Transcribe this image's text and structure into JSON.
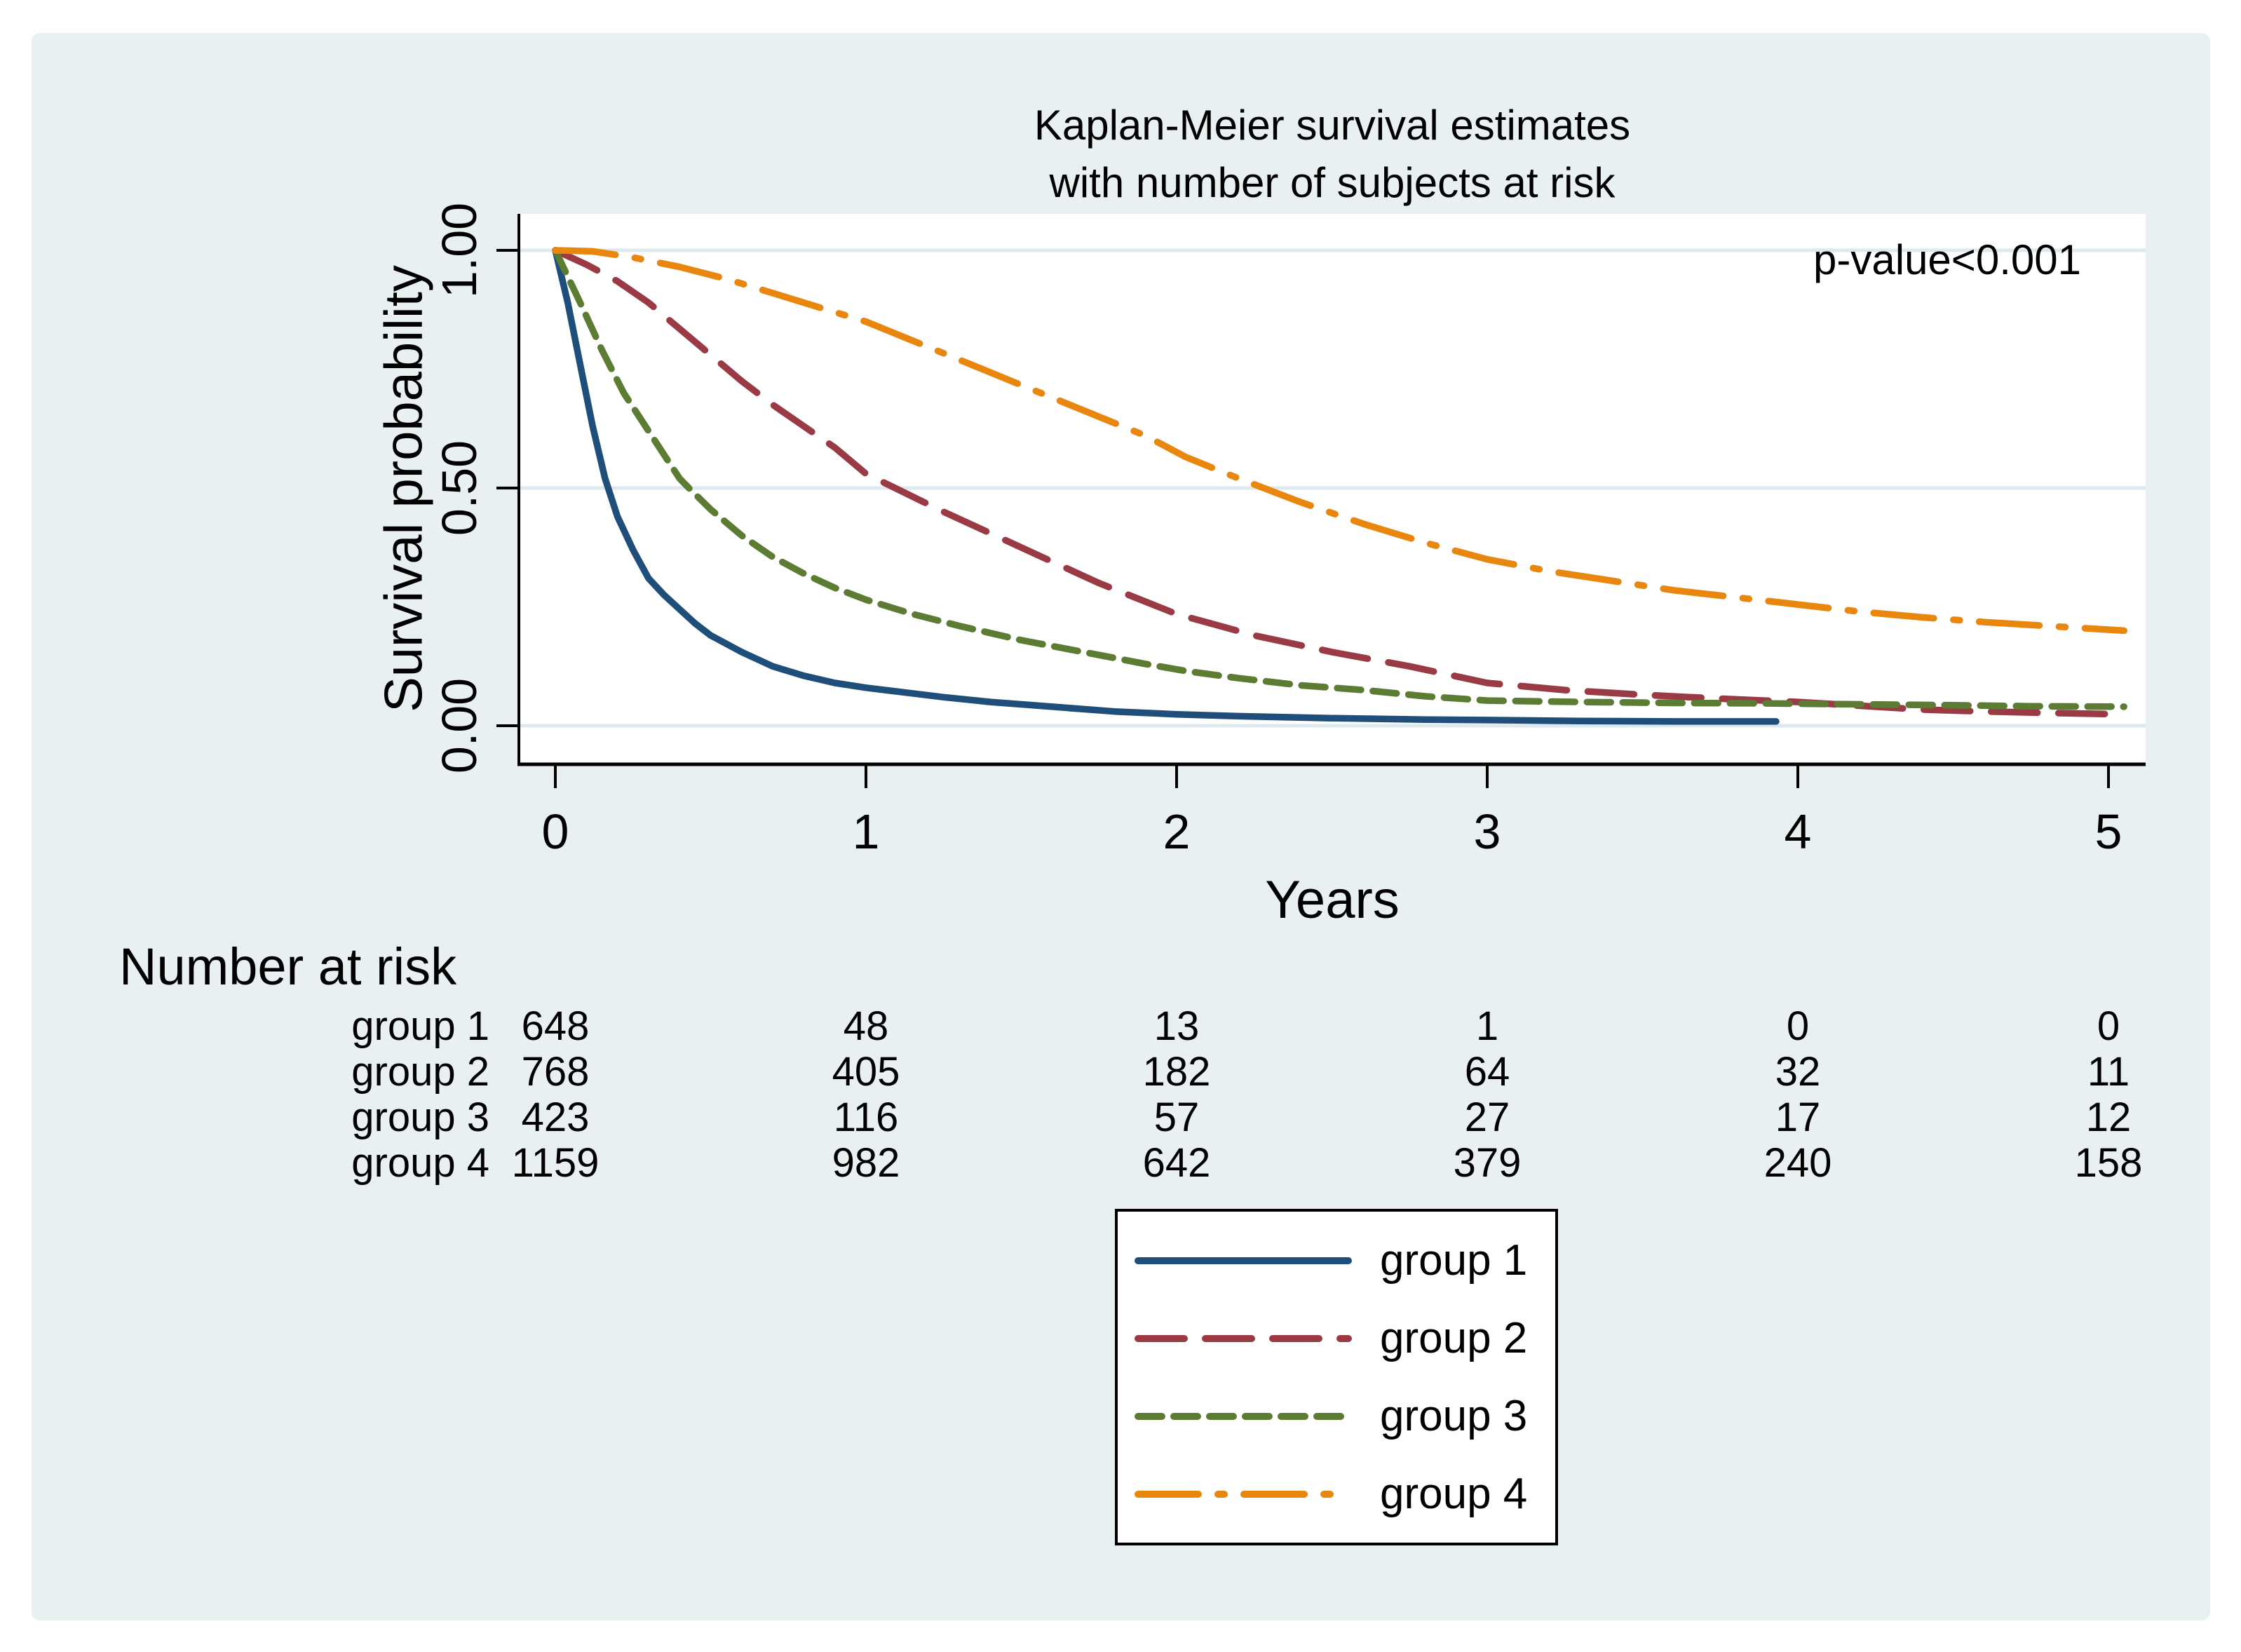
{
  "figure": {
    "background_color": "#e9f0f2",
    "title_line1": "Kaplan-Meier survival estimates",
    "title_line2": "with number of subjects at risk",
    "annotation": "p-value<0.001",
    "xlabel": "Years",
    "ylabel": "Survival probability"
  },
  "chart_data": {
    "type": "line",
    "title": "Kaplan-Meier survival estimates with number of subjects at risk",
    "xlabel": "Years",
    "ylabel": "Survival probability",
    "xlim": [
      0,
      5
    ],
    "ylim": [
      0,
      1
    ],
    "x_ticks": [
      "0",
      "1",
      "2",
      "3",
      "4",
      "5"
    ],
    "y_ticks": [
      "0.00",
      "0.50",
      "1.00"
    ],
    "y_tick_values": [
      0,
      0.5,
      1
    ],
    "grid": true,
    "gridline_color": "#dde9ee",
    "annotation": "p-value<0.001",
    "legend_position": "bottom-center",
    "series": [
      {
        "name": "group 1",
        "color": "#1e4e79",
        "dash": "solid",
        "points": [
          [
            0,
            1.0
          ],
          [
            0.04,
            0.89
          ],
          [
            0.08,
            0.76
          ],
          [
            0.12,
            0.63
          ],
          [
            0.16,
            0.52
          ],
          [
            0.2,
            0.44
          ],
          [
            0.25,
            0.37
          ],
          [
            0.3,
            0.31
          ],
          [
            0.35,
            0.275
          ],
          [
            0.4,
            0.245
          ],
          [
            0.45,
            0.215
          ],
          [
            0.5,
            0.19
          ],
          [
            0.6,
            0.155
          ],
          [
            0.7,
            0.125
          ],
          [
            0.8,
            0.105
          ],
          [
            0.9,
            0.09
          ],
          [
            1.0,
            0.08
          ],
          [
            1.1,
            0.072
          ],
          [
            1.25,
            0.06
          ],
          [
            1.4,
            0.05
          ],
          [
            1.6,
            0.04
          ],
          [
            1.8,
            0.03
          ],
          [
            2.0,
            0.024
          ],
          [
            2.2,
            0.02
          ],
          [
            2.5,
            0.016
          ],
          [
            2.8,
            0.013
          ],
          [
            3.0,
            0.012
          ],
          [
            3.3,
            0.01
          ],
          [
            3.6,
            0.009
          ],
          [
            3.93,
            0.009
          ]
        ]
      },
      {
        "name": "group 2",
        "color": "#9a3a44",
        "dash": "long-dash",
        "points": [
          [
            0,
            1.0
          ],
          [
            0.1,
            0.97
          ],
          [
            0.2,
            0.935
          ],
          [
            0.3,
            0.89
          ],
          [
            0.4,
            0.835
          ],
          [
            0.5,
            0.78
          ],
          [
            0.6,
            0.725
          ],
          [
            0.7,
            0.675
          ],
          [
            0.8,
            0.63
          ],
          [
            0.9,
            0.585
          ],
          [
            1.0,
            0.53
          ],
          [
            1.25,
            0.45
          ],
          [
            1.5,
            0.375
          ],
          [
            1.75,
            0.3
          ],
          [
            2.0,
            0.235
          ],
          [
            2.25,
            0.19
          ],
          [
            2.5,
            0.155
          ],
          [
            2.75,
            0.125
          ],
          [
            3.0,
            0.09
          ],
          [
            3.25,
            0.075
          ],
          [
            3.5,
            0.065
          ],
          [
            3.75,
            0.057
          ],
          [
            4.0,
            0.05
          ],
          [
            4.2,
            0.042
          ],
          [
            4.4,
            0.034
          ],
          [
            4.6,
            0.03
          ],
          [
            4.8,
            0.027
          ],
          [
            5.05,
            0.024
          ]
        ]
      },
      {
        "name": "group 3",
        "color": "#5d7c33",
        "dash": "short-dash",
        "points": [
          [
            0,
            1.0
          ],
          [
            0.08,
            0.89
          ],
          [
            0.15,
            0.79
          ],
          [
            0.22,
            0.7
          ],
          [
            0.3,
            0.62
          ],
          [
            0.4,
            0.52
          ],
          [
            0.43,
            0.5
          ],
          [
            0.5,
            0.455
          ],
          [
            0.6,
            0.4
          ],
          [
            0.7,
            0.355
          ],
          [
            0.8,
            0.32
          ],
          [
            0.9,
            0.29
          ],
          [
            1.0,
            0.265
          ],
          [
            1.15,
            0.235
          ],
          [
            1.3,
            0.21
          ],
          [
            1.5,
            0.18
          ],
          [
            1.7,
            0.155
          ],
          [
            1.9,
            0.13
          ],
          [
            2.03,
            0.115
          ],
          [
            2.2,
            0.1
          ],
          [
            2.4,
            0.085
          ],
          [
            2.6,
            0.075
          ],
          [
            2.8,
            0.062
          ],
          [
            3.0,
            0.053
          ],
          [
            3.3,
            0.05
          ],
          [
            3.6,
            0.048
          ],
          [
            3.9,
            0.047
          ],
          [
            4.2,
            0.045
          ],
          [
            4.5,
            0.043
          ],
          [
            4.75,
            0.041
          ],
          [
            5.05,
            0.04
          ]
        ]
      },
      {
        "name": "group 4",
        "color": "#e8860e",
        "dash": "dash-dot",
        "points": [
          [
            0,
            1.0
          ],
          [
            0.12,
            0.998
          ],
          [
            0.25,
            0.985
          ],
          [
            0.4,
            0.965
          ],
          [
            0.55,
            0.94
          ],
          [
            0.7,
            0.91
          ],
          [
            0.85,
            0.88
          ],
          [
            1.0,
            0.85
          ],
          [
            1.15,
            0.81
          ],
          [
            1.3,
            0.77
          ],
          [
            1.45,
            0.73
          ],
          [
            1.6,
            0.69
          ],
          [
            1.75,
            0.65
          ],
          [
            1.9,
            0.61
          ],
          [
            2.03,
            0.565
          ],
          [
            2.2,
            0.52
          ],
          [
            2.4,
            0.47
          ],
          [
            2.6,
            0.425
          ],
          [
            2.8,
            0.385
          ],
          [
            3.0,
            0.35
          ],
          [
            3.2,
            0.325
          ],
          [
            3.4,
            0.305
          ],
          [
            3.6,
            0.285
          ],
          [
            3.8,
            0.27
          ],
          [
            4.0,
            0.255
          ],
          [
            4.2,
            0.24
          ],
          [
            4.4,
            0.228
          ],
          [
            4.6,
            0.218
          ],
          [
            4.8,
            0.21
          ],
          [
            5.05,
            0.2
          ]
        ]
      }
    ],
    "risk_table": {
      "heading": "Number at risk",
      "time_points": [
        0,
        1,
        2,
        3,
        4,
        5
      ],
      "rows": [
        {
          "label": "group 1",
          "counts": [
            "648",
            "48",
            "13",
            "1",
            "0",
            "0"
          ]
        },
        {
          "label": "group 2",
          "counts": [
            "768",
            "405",
            "182",
            "64",
            "32",
            "11"
          ]
        },
        {
          "label": "group 3",
          "counts": [
            "423",
            "116",
            "57",
            "27",
            "17",
            "12"
          ]
        },
        {
          "label": "group 4",
          "counts": [
            "1159",
            "982",
            "642",
            "379",
            "240",
            "158"
          ]
        }
      ]
    }
  }
}
